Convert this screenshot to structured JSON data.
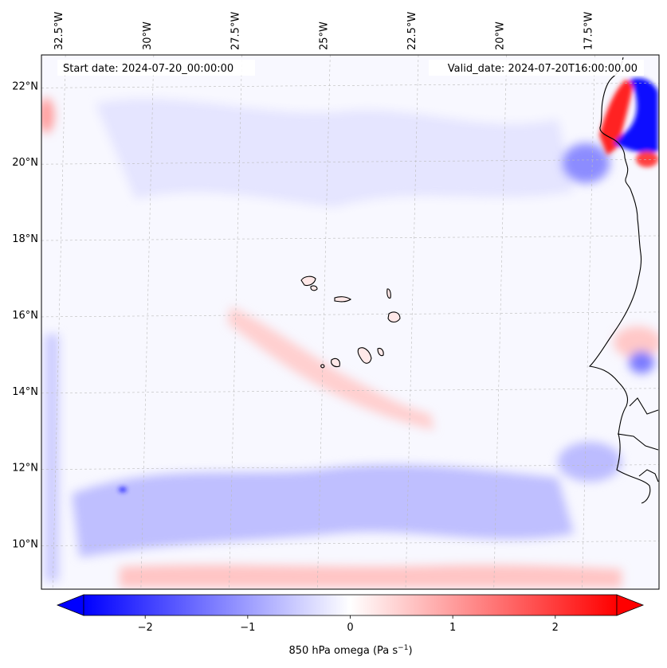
{
  "map": {
    "start_label": "Start date: 2024-07-20_00:00:00",
    "valid_label": "Valid_date: 2024-07-20T16:00:00.00",
    "extent": {
      "lon_min": -33.0,
      "lon_max": -15.5,
      "lat_min": 8.8,
      "lat_max": 22.8
    },
    "gridlines": "dashed light grey",
    "lon_ticks": [
      {
        "value": -32.5,
        "label": "32.5°W"
      },
      {
        "value": -30.0,
        "label": "30°W"
      },
      {
        "value": -27.5,
        "label": "27.5°W"
      },
      {
        "value": -25.0,
        "label": "25°W"
      },
      {
        "value": -22.5,
        "label": "22.5°W"
      },
      {
        "value": -20.0,
        "label": "20°W"
      },
      {
        "value": -17.5,
        "label": "17.5°W"
      }
    ],
    "lat_ticks": [
      {
        "value": 22,
        "label": "22°N"
      },
      {
        "value": 20,
        "label": "20°N"
      },
      {
        "value": 18,
        "label": "18°N"
      },
      {
        "value": 16,
        "label": "16°N"
      },
      {
        "value": 14,
        "label": "14°N"
      },
      {
        "value": 12,
        "label": "12°N"
      },
      {
        "value": 10,
        "label": "10°N"
      }
    ],
    "field_colors": {
      "strong_neg": "#0000ff",
      "neg": "#6f6fff",
      "weak_neg": "#d6d6ff",
      "neutral": "#f7f7ff",
      "weak_pos": "#ffd9d9",
      "pos": "#ff8080",
      "strong_pos": "#ff0000"
    }
  },
  "colorbar": {
    "label": "850 hPa omega (Pa s",
    "label_exp": "−1",
    "label_end": ")",
    "min": -2.6,
    "max": 2.6,
    "extend": "both",
    "colormap": "bwr",
    "ticks": [
      {
        "value": -2,
        "label": "−2"
      },
      {
        "value": -1,
        "label": "−1"
      },
      {
        "value": 0,
        "label": "0"
      },
      {
        "value": 1,
        "label": "1"
      },
      {
        "value": 2,
        "label": "2"
      }
    ]
  }
}
